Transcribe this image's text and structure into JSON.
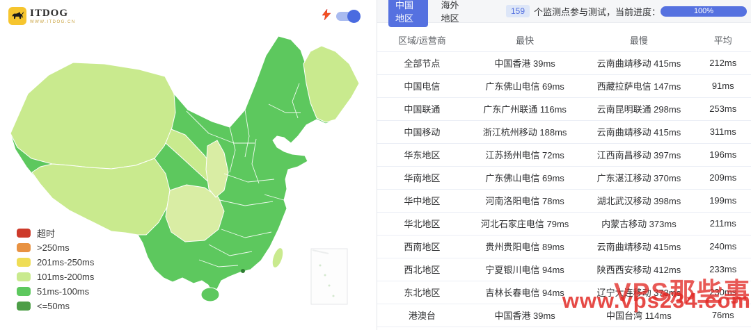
{
  "left": {
    "logo": {
      "title": "ITDOG",
      "subtitle": "WWW.ITDOG.CN"
    },
    "toggle_state": "on",
    "legend": [
      {
        "label": "超时",
        "color": "#cd3a2a"
      },
      {
        "label": ">250ms",
        "color": "#e89242"
      },
      {
        "label": "201ms-250ms",
        "color": "#efdd55"
      },
      {
        "label": "101ms-200ms",
        "color": "#c9ea8e"
      },
      {
        "label": "51ms-100ms",
        "color": "#5dc85e"
      },
      {
        "label": "<=50ms",
        "color": "#4d9e47"
      }
    ],
    "map_colors": {
      "mid": "#5dc85e",
      "light": "#c9ea8e",
      "pale": "#d9eda4",
      "dark": "#2e7d32"
    }
  },
  "header": {
    "tabs": [
      {
        "label": "中国地区",
        "active": true
      },
      {
        "label": "海外地区",
        "active": false
      }
    ],
    "monitor_count": "159",
    "monitor_text": "个监测点参与测试，当前进度：",
    "progress": "100%"
  },
  "table": {
    "columns": [
      "区域/运营商",
      "最快",
      "最慢",
      "平均"
    ],
    "rows": [
      [
        "全部节点",
        "中国香港 39ms",
        "云南曲靖移动 415ms",
        "212ms"
      ],
      [
        "中国电信",
        "广东佛山电信 69ms",
        "西藏拉萨电信 147ms",
        "91ms"
      ],
      [
        "中国联通",
        "广东广州联通 116ms",
        "云南昆明联通 298ms",
        "253ms"
      ],
      [
        "中国移动",
        "浙江杭州移动 188ms",
        "云南曲靖移动 415ms",
        "311ms"
      ],
      [
        "华东地区",
        "江苏扬州电信 72ms",
        "江西南昌移动 397ms",
        "196ms"
      ],
      [
        "华南地区",
        "广东佛山电信 69ms",
        "广东湛江移动 370ms",
        "209ms"
      ],
      [
        "华中地区",
        "河南洛阳电信 78ms",
        "湖北武汉移动 398ms",
        "199ms"
      ],
      [
        "华北地区",
        "河北石家庄电信 79ms",
        "内蒙古移动 373ms",
        "211ms"
      ],
      [
        "西南地区",
        "贵州贵阳电信 89ms",
        "云南曲靖移动 415ms",
        "240ms"
      ],
      [
        "西北地区",
        "宁夏银川电信 94ms",
        "陕西西安移动 412ms",
        "233ms"
      ],
      [
        "东北地区",
        "吉林长春电信 94ms",
        "辽宁大连移动 373ms",
        "230ms"
      ],
      [
        "港澳台",
        "中国香港 39ms",
        "中国台湾 114ms",
        "76ms"
      ]
    ]
  },
  "watermark": {
    "line1": "VPS那些事",
    "line2": "www.vps234.com"
  }
}
